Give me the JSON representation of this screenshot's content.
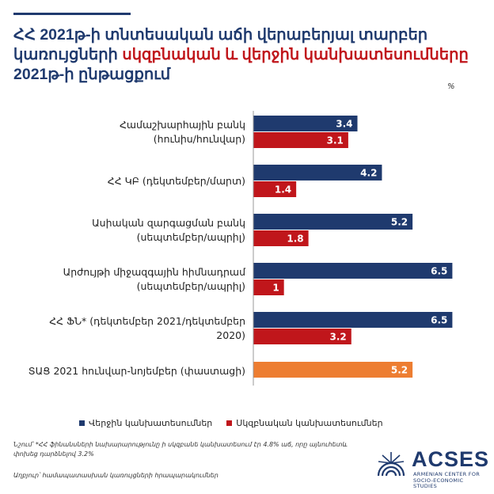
{
  "title": {
    "part1": "ՀՀ 2021թ-ի տնտեսական աճի վերաբերյալ տարբեր կառույցների ",
    "highlight": "սկզբնական և վերջին կանխատեսումները",
    "part2": " 2021թ-ի ընթացքում"
  },
  "unit": "%",
  "colors": {
    "final": "#1f3a6e",
    "initial": "#c0161b",
    "actual": "#ed7d31",
    "title": "#1f3a6e",
    "highlight": "#c0161b"
  },
  "chart_data": {
    "type": "bar",
    "orientation": "horizontal",
    "categories": [
      [
        "Համաշխարհային բանկ",
        "(հունիս/հունվար)"
      ],
      [
        "ՀՀ ԿԲ (դեկտեմբեր/մարտ)"
      ],
      [
        "Ասիական զարգացման բանկ",
        "(սեպտեմբեր/ապրիլ)"
      ],
      [
        "Արժույթի միջազգային հիմնադրամ",
        "(սեպտեմբեր/ապրիլ)"
      ],
      [
        "ՀՀ ՖՆ* (դեկտեմբեր 2021/դեկտեմբեր",
        "2020)"
      ],
      [
        "ՏԱՑ 2021 հունվար-նոյեմբեր  (փաստացի)"
      ]
    ],
    "series": [
      {
        "name": "Վերջին կանխատեսումներ",
        "values": [
          3.4,
          4.2,
          5.2,
          6.5,
          6.5,
          null
        ]
      },
      {
        "name": "Սկզբնական կանխատեսումներ",
        "values": [
          3.1,
          1.4,
          1.8,
          1,
          3.2,
          null
        ]
      },
      {
        "values": [
          null,
          null,
          null,
          null,
          null,
          5.2
        ]
      }
    ],
    "value_labels": [
      [
        "3.4",
        "4.2",
        "5.2",
        "6.5",
        "6.5",
        ""
      ],
      [
        "3.1",
        "1.4",
        "1.8",
        "1",
        "3.2",
        ""
      ],
      [
        "",
        "",
        "",
        "",
        "",
        "5.2"
      ]
    ],
    "xlim": [
      0,
      6.8
    ],
    "legend": "bottom"
  },
  "note": "Նշում՝  *ՀՀ ֆինանսների նախարարությունը ի սկզբանե կանխատեսում էր 4.8% աճ, որը այնուհետև փոխեց դարձնելով 3.2%",
  "source": "Աղբյուր՝ համապատասխան կառույցների հրապարակումներ",
  "logo": {
    "name": "ACSES",
    "sub1": "ARMENIAN CENTER FOR",
    "sub2": "SOCIO-ECONOMIC STUDIES"
  }
}
